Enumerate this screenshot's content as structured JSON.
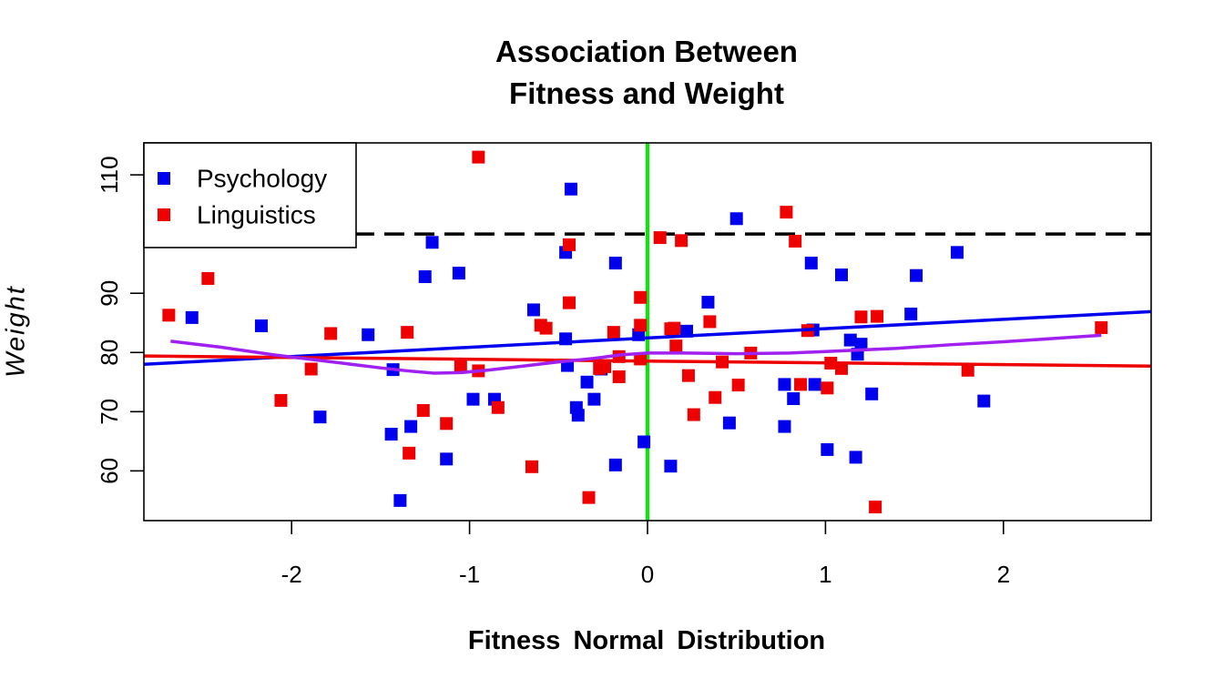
{
  "chart_data": {
    "type": "scatter",
    "title": [
      "Association Between",
      "Fitness and Weight"
    ],
    "xlabel": "Fitness  Normal  Distribution",
    "ylabel": "Weight",
    "xlim": [
      -2.83,
      2.83
    ],
    "ylim": [
      51.6,
      115.4
    ],
    "x_ticks": [
      -2,
      -1,
      0,
      1,
      2
    ],
    "y_ticks": [
      60,
      70,
      80,
      90,
      110
    ],
    "legend": {
      "placement": "top-left"
    },
    "series": [
      {
        "name": "Psychology",
        "color": "#0000ee",
        "marker": "square",
        "points": [
          [
            -2.56,
            85.9
          ],
          [
            -2.17,
            84.5
          ],
          [
            -1.84,
            69.1
          ],
          [
            -1.57,
            83.0
          ],
          [
            -1.44,
            66.2
          ],
          [
            -1.43,
            77.1
          ],
          [
            -1.39,
            55.0
          ],
          [
            -1.33,
            67.5
          ],
          [
            -1.25,
            92.8
          ],
          [
            -1.21,
            98.6
          ],
          [
            -1.13,
            62.0
          ],
          [
            -1.06,
            93.4
          ],
          [
            -0.98,
            72.1
          ],
          [
            -0.86,
            72.1
          ],
          [
            -0.64,
            87.2
          ],
          [
            -0.46,
            96.9
          ],
          [
            -0.46,
            82.3
          ],
          [
            -0.45,
            77.8
          ],
          [
            -0.43,
            107.6
          ],
          [
            -0.4,
            70.7
          ],
          [
            -0.39,
            69.4
          ],
          [
            -0.34,
            75.0
          ],
          [
            -0.3,
            72.1
          ],
          [
            -0.26,
            77.2
          ],
          [
            -0.18,
            95.1
          ],
          [
            -0.18,
            61.0
          ],
          [
            -0.05,
            83.0
          ],
          [
            -0.02,
            64.9
          ],
          [
            0.13,
            60.8
          ],
          [
            0.14,
            83.8
          ],
          [
            0.22,
            83.6
          ],
          [
            0.34,
            88.5
          ],
          [
            0.46,
            68.1
          ],
          [
            0.5,
            102.6
          ],
          [
            0.77,
            74.6
          ],
          [
            0.77,
            67.5
          ],
          [
            0.82,
            72.2
          ],
          [
            0.92,
            95.1
          ],
          [
            0.93,
            83.8
          ],
          [
            0.94,
            74.6
          ],
          [
            1.01,
            63.6
          ],
          [
            1.09,
            93.1
          ],
          [
            1.14,
            82.1
          ],
          [
            1.17,
            62.3
          ],
          [
            1.18,
            79.7
          ],
          [
            1.2,
            81.4
          ],
          [
            1.26,
            73.0
          ],
          [
            1.48,
            86.5
          ],
          [
            1.51,
            93.0
          ],
          [
            1.74,
            96.9
          ],
          [
            1.89,
            71.8
          ]
        ],
        "fit_line": {
          "color": "#0000ee",
          "y_at_xlim": [
            78.0,
            86.9
          ]
        }
      },
      {
        "name": "Linguistics",
        "color": "#ee0000",
        "marker": "square",
        "points": [
          [
            -2.69,
            86.3
          ],
          [
            -2.47,
            92.5
          ],
          [
            -2.06,
            71.9
          ],
          [
            -1.89,
            77.2
          ],
          [
            -1.78,
            83.2
          ],
          [
            -1.35,
            83.4
          ],
          [
            -1.34,
            63.0
          ],
          [
            -1.26,
            70.2
          ],
          [
            -1.13,
            68.0
          ],
          [
            -1.05,
            77.7
          ],
          [
            -0.95,
            76.9
          ],
          [
            -0.95,
            113.0
          ],
          [
            -0.84,
            70.7
          ],
          [
            -0.65,
            60.7
          ],
          [
            -0.6,
            84.6
          ],
          [
            -0.57,
            84.1
          ],
          [
            -0.44,
            98.2
          ],
          [
            -0.44,
            88.4
          ],
          [
            -0.33,
            55.5
          ],
          [
            -0.27,
            77.3
          ],
          [
            -0.24,
            77.6
          ],
          [
            -0.19,
            83.4
          ],
          [
            -0.16,
            79.3
          ],
          [
            -0.16,
            75.9
          ],
          [
            -0.04,
            89.3
          ],
          [
            -0.04,
            84.6
          ],
          [
            -0.04,
            78.9
          ],
          [
            0.07,
            99.4
          ],
          [
            0.13,
            84.0
          ],
          [
            0.15,
            84.1
          ],
          [
            0.16,
            81.1
          ],
          [
            0.19,
            98.9
          ],
          [
            0.23,
            76.1
          ],
          [
            0.26,
            69.5
          ],
          [
            0.35,
            85.2
          ],
          [
            0.38,
            72.4
          ],
          [
            0.42,
            78.4
          ],
          [
            0.51,
            74.5
          ],
          [
            0.58,
            79.9
          ],
          [
            0.78,
            103.7
          ],
          [
            0.83,
            98.8
          ],
          [
            0.86,
            74.6
          ],
          [
            0.9,
            83.7
          ],
          [
            1.01,
            74.0
          ],
          [
            1.03,
            78.2
          ],
          [
            1.09,
            77.3
          ],
          [
            1.2,
            86.0
          ],
          [
            1.28,
            53.9
          ],
          [
            1.29,
            86.1
          ],
          [
            1.8,
            77.0
          ],
          [
            2.55,
            84.2
          ]
        ],
        "fit_line": {
          "color": "#ee0000",
          "y_at_xlim": [
            79.4,
            77.7
          ]
        }
      }
    ],
    "smooth_curve": {
      "color": "#a020f0",
      "points": [
        [
          -2.68,
          81.9
        ],
        [
          -2.4,
          80.9
        ],
        [
          -2.1,
          79.6
        ],
        [
          -1.8,
          78.5
        ],
        [
          -1.5,
          77.4
        ],
        [
          -1.35,
          76.9
        ],
        [
          -1.2,
          76.5
        ],
        [
          -1.05,
          76.6
        ],
        [
          -0.9,
          77.0
        ],
        [
          -0.7,
          77.7
        ],
        [
          -0.5,
          78.4
        ],
        [
          -0.3,
          79.0
        ],
        [
          -0.15,
          79.6
        ],
        [
          0.0,
          79.9
        ],
        [
          0.2,
          79.9
        ],
        [
          0.5,
          79.8
        ],
        [
          0.8,
          79.9
        ],
        [
          1.1,
          80.3
        ],
        [
          1.4,
          80.7
        ],
        [
          1.7,
          81.3
        ],
        [
          2.0,
          81.8
        ],
        [
          2.3,
          82.4
        ],
        [
          2.55,
          82.9
        ]
      ]
    },
    "reference_lines": [
      {
        "orientation": "horizontal",
        "value": 100,
        "color": "#000000",
        "style": "dashed"
      },
      {
        "orientation": "vertical",
        "value": 0,
        "color": "#00ee00",
        "style": "solid"
      }
    ]
  }
}
